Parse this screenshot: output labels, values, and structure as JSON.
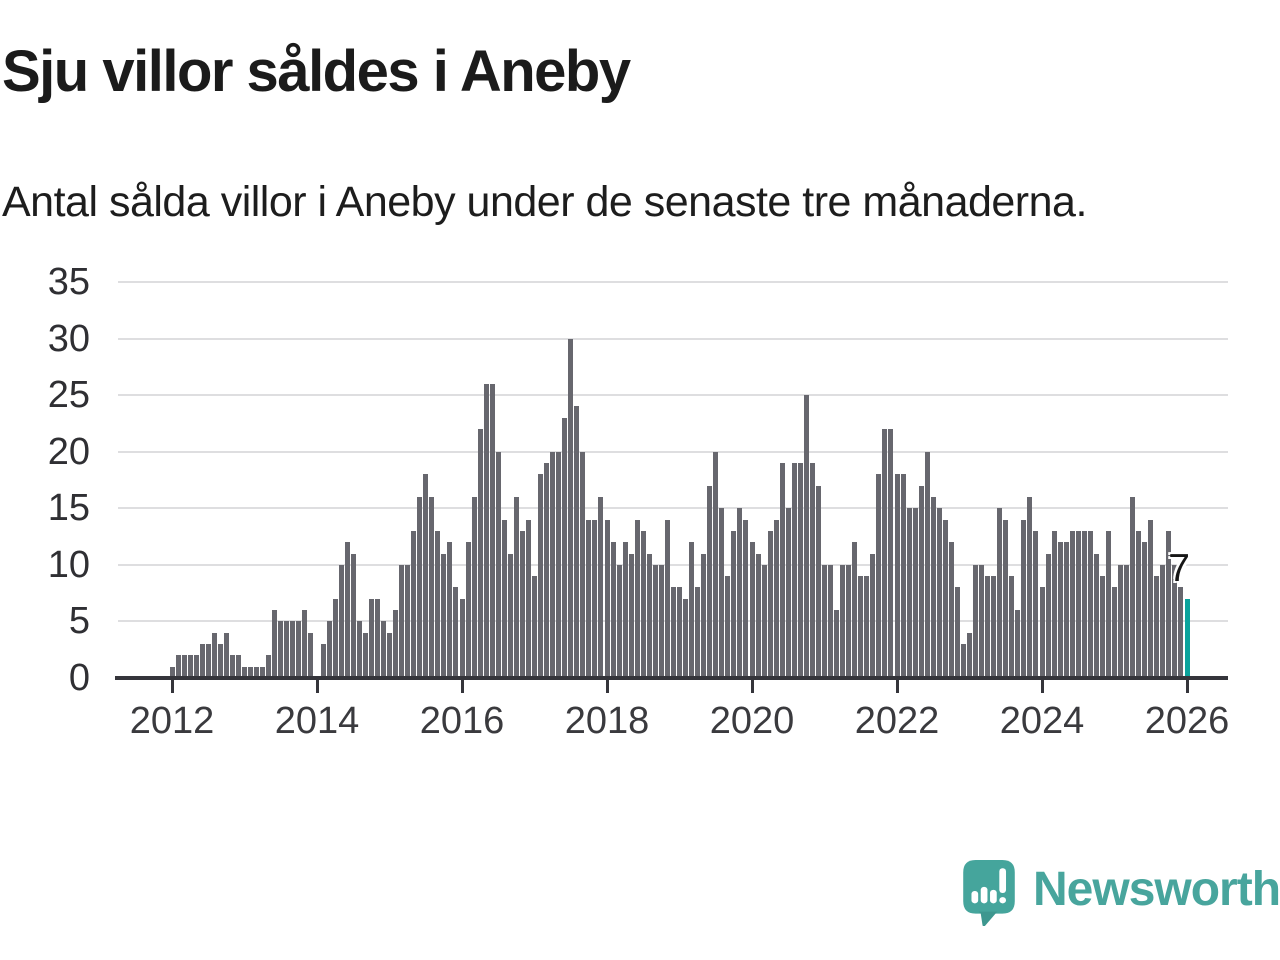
{
  "title": "Sju villor såldes i Aneby",
  "subtitle": "Antal sålda villor i Aneby under de senaste tre månaderna.",
  "chart_data": {
    "type": "bar",
    "title": "Sju villor såldes i Aneby",
    "subtitle": "Antal sålda villor i Aneby under de senaste tre månaderna.",
    "x_unit": "month",
    "x_start": "2012-01",
    "x_end": "2026-01",
    "values": [
      1,
      2,
      2,
      2,
      2,
      3,
      3,
      4,
      3,
      4,
      2,
      2,
      1,
      1,
      1,
      1,
      2,
      6,
      5,
      5,
      5,
      5,
      6,
      4,
      0,
      3,
      5,
      7,
      10,
      12,
      11,
      5,
      4,
      7,
      7,
      5,
      4,
      6,
      10,
      10,
      13,
      16,
      18,
      16,
      13,
      11,
      12,
      8,
      7,
      12,
      16,
      22,
      26,
      26,
      20,
      14,
      11,
      16,
      13,
      14,
      9,
      18,
      19,
      20,
      20,
      23,
      30,
      24,
      20,
      14,
      14,
      16,
      14,
      12,
      10,
      12,
      11,
      14,
      13,
      11,
      10,
      10,
      14,
      8,
      8,
      7,
      12,
      8,
      11,
      17,
      20,
      15,
      9,
      13,
      15,
      14,
      12,
      11,
      10,
      13,
      14,
      19,
      15,
      19,
      19,
      25,
      19,
      17,
      10,
      10,
      6,
      10,
      10,
      12,
      9,
      9,
      11,
      18,
      22,
      22,
      18,
      18,
      15,
      15,
      17,
      20,
      16,
      15,
      14,
      12,
      8,
      3,
      4,
      10,
      10,
      9,
      9,
      15,
      14,
      9,
      6,
      14,
      16,
      13,
      8,
      11,
      13,
      12,
      12,
      13,
      13,
      13,
      13,
      11,
      9,
      13,
      8,
      10,
      10,
      16,
      13,
      12,
      14,
      9,
      10,
      13,
      10,
      8,
      7
    ],
    "ylim": [
      0,
      35
    ],
    "yticks": [
      0,
      5,
      10,
      15,
      20,
      25,
      30,
      35
    ],
    "xtick_labels": [
      "2012",
      "2014",
      "2016",
      "2018",
      "2020",
      "2022",
      "2024",
      "2026"
    ],
    "xtick_month_indices": [
      0,
      24,
      48,
      72,
      96,
      120,
      144,
      168
    ],
    "grid": true,
    "legend_position": "none",
    "bar_color": "#67676e",
    "highlight_last_color": "#0ba39c",
    "last_value": 7,
    "last_value_label": "7"
  },
  "annotation": {
    "last_value_label": "7"
  },
  "branding": {
    "wordmark": "Newsworthy",
    "wordmark_color": "#48a59d",
    "icon_color": "#45a59c"
  },
  "colors": {
    "background": "#ffffff",
    "text": "#1b1b1b",
    "axis": "#35353b",
    "gridline": "#dedee0",
    "tick_label": "#3a3a3e",
    "bar": "#67676e",
    "highlight": "#0ba39c"
  }
}
